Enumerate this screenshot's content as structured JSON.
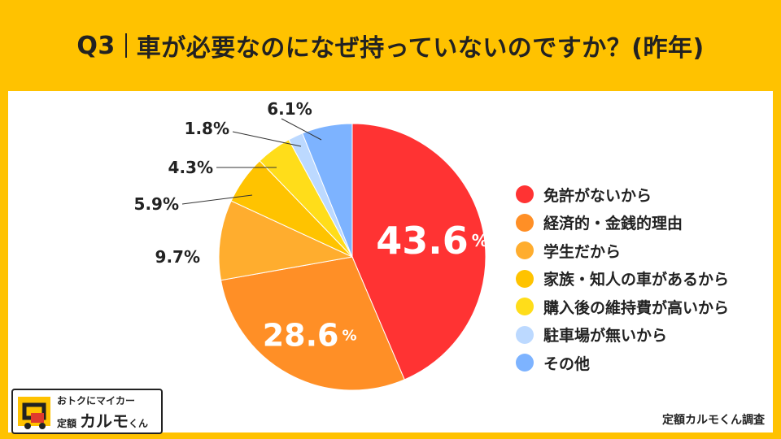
{
  "header": {
    "q": "Q3",
    "title": "車が必要なのになぜ持っていないのですか？(昨年)"
  },
  "chart_data": {
    "type": "pie",
    "title": "車が必要なのになぜ持っていないのですか？(昨年)",
    "unit": "%",
    "slices": [
      {
        "label": "免許がないから",
        "value": 43.6,
        "color": "#ff3333"
      },
      {
        "label": "経済的・金銭的理由",
        "value": 28.6,
        "color": "#ff8f26"
      },
      {
        "label": "学生だから",
        "value": 9.7,
        "color": "#ffad2e"
      },
      {
        "label": "家族・知人の車があるから",
        "value": 5.9,
        "color": "#ffc300"
      },
      {
        "label": "購入後の維持費が高いから",
        "value": 4.3,
        "color": "#ffdd1a"
      },
      {
        "label": "駐車場が無いから",
        "value": 1.8,
        "color": "#bcd9ff"
      },
      {
        "label": "その他",
        "value": 6.1,
        "color": "#7db3ff"
      }
    ],
    "data_labels": [
      "43.6",
      "28.6",
      "9.7%",
      "5.9%",
      "4.3%",
      "1.8%",
      "6.1%"
    ],
    "label_suffix": "%",
    "legend_position": "right"
  },
  "footer": {
    "source": "定額カルモくん調査",
    "logo_tagline": "おトクにマイカー",
    "logo_prefix": "定額",
    "logo_name": "カルモ",
    "logo_suffix": "くん"
  }
}
